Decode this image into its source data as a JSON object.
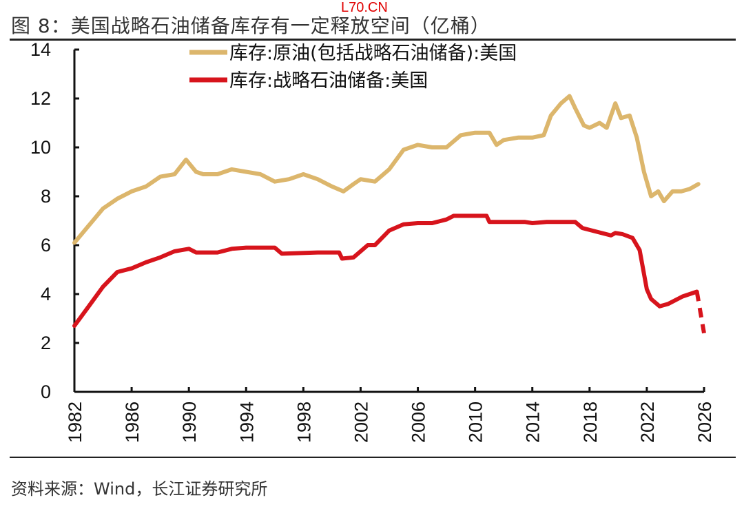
{
  "title": "图 8：美国战略石油储备库存有一定释放空间（亿桶）",
  "watermark": "L70.CN",
  "source": "资料来源：Wind，长江证券研究所",
  "chart_data": {
    "type": "line",
    "title": "图 8：美国战略石油储备库存有一定释放空间（亿桶）",
    "xlabel": "",
    "ylabel": "亿桶",
    "xlim": [
      1982,
      2026
    ],
    "ylim": [
      0,
      14
    ],
    "xticks": [
      "1982",
      "1986",
      "1990",
      "1994",
      "1998",
      "2002",
      "2006",
      "2010",
      "2014",
      "2018",
      "2022",
      "2026"
    ],
    "yticks": [
      "0",
      "2",
      "4",
      "6",
      "8",
      "10",
      "12",
      "14"
    ],
    "legend_position": "top-center",
    "series": [
      {
        "name": "库存:原油(包括战略石油储备):美国",
        "color": "#dcb66c",
        "x": [
          1982,
          1983,
          1984,
          1985,
          1986,
          1987,
          1988,
          1989,
          1989.8,
          1990.5,
          1991,
          1992,
          1993,
          1994,
          1995,
          1996,
          1997,
          1998,
          1999,
          2000,
          2000.8,
          2001.5,
          2002,
          2003,
          2004,
          2005,
          2006,
          2007,
          2008,
          2009,
          2010,
          2011,
          2011.5,
          2012,
          2013,
          2014,
          2014.8,
          2015.3,
          2016,
          2016.6,
          2017,
          2017.6,
          2018,
          2018.7,
          2019.2,
          2019.8,
          2020.2,
          2020.8,
          2021.3,
          2021.8,
          2022.3,
          2022.8,
          2023.2,
          2023.8,
          2024.4,
          2025,
          2025.6
        ],
        "y": [
          6.1,
          6.8,
          7.5,
          7.9,
          8.2,
          8.4,
          8.8,
          8.9,
          9.5,
          9.0,
          8.9,
          8.9,
          9.1,
          9.0,
          8.9,
          8.6,
          8.7,
          8.9,
          8.7,
          8.4,
          8.2,
          8.5,
          8.7,
          8.6,
          9.1,
          9.9,
          10.1,
          10.0,
          10.0,
          10.5,
          10.6,
          10.6,
          10.1,
          10.3,
          10.4,
          10.4,
          10.5,
          11.3,
          11.8,
          12.1,
          11.6,
          10.9,
          10.8,
          11.0,
          10.8,
          11.8,
          11.2,
          11.3,
          10.4,
          9.0,
          8.0,
          8.2,
          7.8,
          8.2,
          8.2,
          8.3,
          8.5
        ]
      },
      {
        "name": "库存:战略石油储备:美国",
        "color": "#d7141c",
        "x": [
          1982,
          1983,
          1984,
          1985,
          1986,
          1987,
          1988,
          1989,
          1990,
          1990.5,
          1992,
          1993,
          1994,
          1996,
          1996.5,
          1999,
          2000.5,
          2000.7,
          2001.5,
          2002.5,
          2003,
          2004,
          2005,
          2006,
          2007,
          2008,
          2008.5,
          2010.8,
          2011,
          2013.5,
          2014,
          2015,
          2017,
          2017.5,
          2018.5,
          2019.5,
          2019.8,
          2020.3,
          2021,
          2021.5,
          2022,
          2022.3,
          2022.9,
          2023.5,
          2024.5,
          2025.5
        ],
        "y": [
          2.7,
          3.5,
          4.3,
          4.9,
          5.05,
          5.3,
          5.5,
          5.75,
          5.85,
          5.7,
          5.7,
          5.85,
          5.9,
          5.9,
          5.65,
          5.7,
          5.7,
          5.45,
          5.5,
          6.0,
          6.0,
          6.6,
          6.85,
          6.9,
          6.9,
          7.05,
          7.2,
          7.2,
          6.95,
          6.95,
          6.9,
          6.95,
          6.95,
          6.7,
          6.55,
          6.4,
          6.5,
          6.45,
          6.3,
          5.8,
          4.2,
          3.8,
          3.5,
          3.6,
          3.9,
          4.1
        ],
        "projection": {
          "x": [
            2025.5,
            2026
          ],
          "y": [
            4.1,
            2.4
          ],
          "style": "dashed"
        }
      }
    ]
  }
}
